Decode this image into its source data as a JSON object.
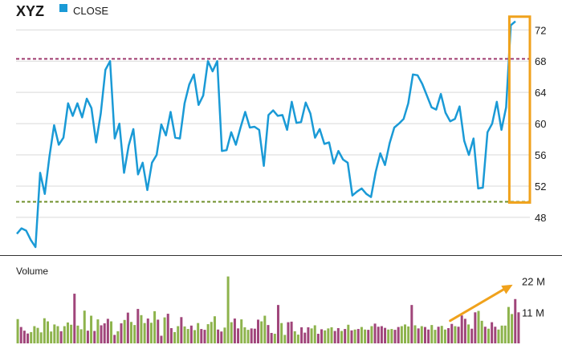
{
  "chart_data": [
    {
      "type": "line",
      "title": "XYZ",
      "legend": {
        "label": "CLOSE",
        "position": "top-left"
      },
      "ylim": [
        44.5,
        74.6
      ],
      "yticks": [
        48,
        52,
        56,
        60,
        64,
        68,
        72
      ],
      "grid": true,
      "series": [
        {
          "name": "CLOSE",
          "values": [
            45.9,
            46.6,
            46.3,
            45.1,
            44.2,
            53.7,
            51.0,
            55.8,
            59.8,
            57.3,
            58.2,
            62.6,
            61.0,
            62.6,
            60.8,
            63.2,
            62.0,
            57.6,
            61.3,
            66.9,
            68.0,
            58.1,
            60.0,
            53.7,
            57.2,
            59.3,
            53.5,
            55.0,
            51.5,
            55.0,
            56.0,
            59.9,
            58.5,
            61.5,
            58.2,
            58.1,
            62.6,
            65.0,
            66.3,
            62.4,
            63.6,
            68.0,
            66.7,
            68.0,
            56.5,
            56.6,
            58.9,
            57.3,
            59.5,
            61.5,
            59.5,
            59.6,
            59.2,
            54.6,
            61.1,
            61.7,
            61.0,
            61.1,
            59.2,
            62.8,
            60.1,
            60.2,
            62.7,
            61.3,
            58.2,
            59.3,
            57.4,
            57.6,
            54.9,
            56.5,
            55.4,
            55.0,
            50.8,
            51.3,
            51.7,
            51.0,
            50.6,
            53.8,
            56.2,
            54.7,
            57.5,
            59.5,
            60.0,
            60.6,
            62.6,
            66.3,
            66.2,
            65.1,
            63.6,
            62.1,
            61.8,
            63.8,
            61.4,
            60.3,
            60.6,
            62.2,
            57.8,
            56.0,
            58.1,
            51.7,
            51.8,
            58.9,
            60.0,
            62.8,
            59.2,
            62.1,
            72.6,
            73.1
          ]
        }
      ],
      "reference_lines": [
        {
          "value": 68.3,
          "color": "#9e3a6e",
          "style": "dashed"
        },
        {
          "value": 50.0,
          "color": "#6f8f2a",
          "style": "dashed"
        }
      ],
      "highlight": {
        "color": "#f0a21c",
        "x_range": [
          0.96,
          1.0
        ],
        "y_range": [
          49.9,
          73.7
        ]
      }
    },
    {
      "type": "bar",
      "title": "Volume",
      "ylim": [
        0,
        27
      ],
      "yticks": [
        11,
        22
      ],
      "ytick_labels": [
        "11 M",
        "22 M"
      ],
      "up_color": "#8db34c",
      "down_color": "#a0457a",
      "values": [
        8.6,
        5.8,
        4.5,
        3.5,
        4.0,
        6.1,
        5.5,
        3.9,
        8.9,
        7.8,
        4.2,
        6.7,
        6.1,
        4.3,
        6.1,
        7.4,
        6.6,
        17.6,
        6.3,
        5.0,
        11.6,
        4.5,
        9.8,
        4.4,
        8.5,
        6.4,
        7.1,
        8.7,
        7.8,
        3.0,
        4.3,
        7.1,
        8.3,
        10.9,
        7.6,
        6.5,
        12.2,
        10.0,
        7.2,
        8.8,
        7.3,
        11.4,
        8.4,
        2.7,
        9.2,
        10.5,
        5.4,
        4.0,
        6.1,
        9.3,
        6.0,
        5.1,
        6.3,
        4.7,
        7.2,
        5.1,
        4.8,
        6.8,
        7.6,
        9.6,
        4.9,
        4.2,
        5.6,
        23.7,
        7.5,
        8.8,
        5.3,
        8.5,
        5.7,
        4.8,
        5.3,
        5.2,
        8.4,
        7.8,
        9.8,
        6.5,
        3.7,
        3.4,
        13.6,
        7.2,
        3.0,
        7.5,
        7.7,
        4.3,
        3.1,
        5.7,
        3.8,
        5.7,
        5.3,
        6.4,
        3.4,
        5.0,
        4.6,
        5.3,
        5.7,
        4.4,
        5.4,
        4.4,
        5.1,
        6.6,
        4.6,
        4.9,
        5.1,
        5.8,
        4.9,
        4.8,
        6.1,
        7.0,
        5.9,
        6.1,
        5.5,
        4.9,
        5.1,
        4.8,
        5.8,
        6.1,
        6.7,
        6.0,
        13.6,
        6.4,
        5.3,
        6.1,
        5.8,
        4.9,
        6.5,
        4.8,
        5.9,
        6.2,
        4.9,
        5.4,
        6.9,
        6.1,
        5.9,
        9.9,
        8.7,
        6.7,
        5.2,
        11.0,
        11.5,
        8.0,
        5.9,
        5.2,
        7.5,
        5.9,
        4.9,
        6.3,
        6.3,
        12.9,
        10.4,
        15.7,
        11.0
      ],
      "directions": [
        "u",
        "d",
        "d",
        "d",
        "u",
        "u",
        "u",
        "u",
        "u",
        "u",
        "u",
        "u",
        "u",
        "d",
        "u",
        "u",
        "u",
        "d",
        "u",
        "u",
        "u",
        "d",
        "u",
        "d",
        "u",
        "d",
        "d",
        "d",
        "u",
        "d",
        "u",
        "d",
        "u",
        "d",
        "u",
        "u",
        "d",
        "u",
        "u",
        "d",
        "u",
        "u",
        "d",
        "d",
        "u",
        "d",
        "d",
        "u",
        "u",
        "d",
        "u",
        "u",
        "d",
        "u",
        "u",
        "d",
        "d",
        "u",
        "u",
        "u",
        "d",
        "d",
        "u",
        "u",
        "u",
        "d",
        "d",
        "u",
        "u",
        "u",
        "d",
        "d",
        "d",
        "u",
        "u",
        "d",
        "d",
        "u",
        "d",
        "u",
        "u",
        "d",
        "d",
        "u",
        "u",
        "d",
        "d",
        "d",
        "u",
        "u",
        "d",
        "d",
        "u",
        "u",
        "u",
        "d",
        "d",
        "u",
        "d",
        "u",
        "d",
        "u",
        "d",
        "u",
        "u",
        "d",
        "u",
        "d",
        "d",
        "d",
        "d",
        "u",
        "u",
        "d",
        "d",
        "u",
        "u",
        "u",
        "d",
        "u",
        "d",
        "u",
        "d",
        "d",
        "u",
        "u",
        "d",
        "u",
        "u",
        "d",
        "d",
        "u",
        "d",
        "d",
        "d",
        "u",
        "d",
        "d",
        "u",
        "u",
        "d",
        "u",
        "d",
        "d",
        "u",
        "u",
        "u",
        "u",
        "u"
      ],
      "annotation": {
        "type": "arrow",
        "color": "#f0a21c"
      }
    }
  ]
}
